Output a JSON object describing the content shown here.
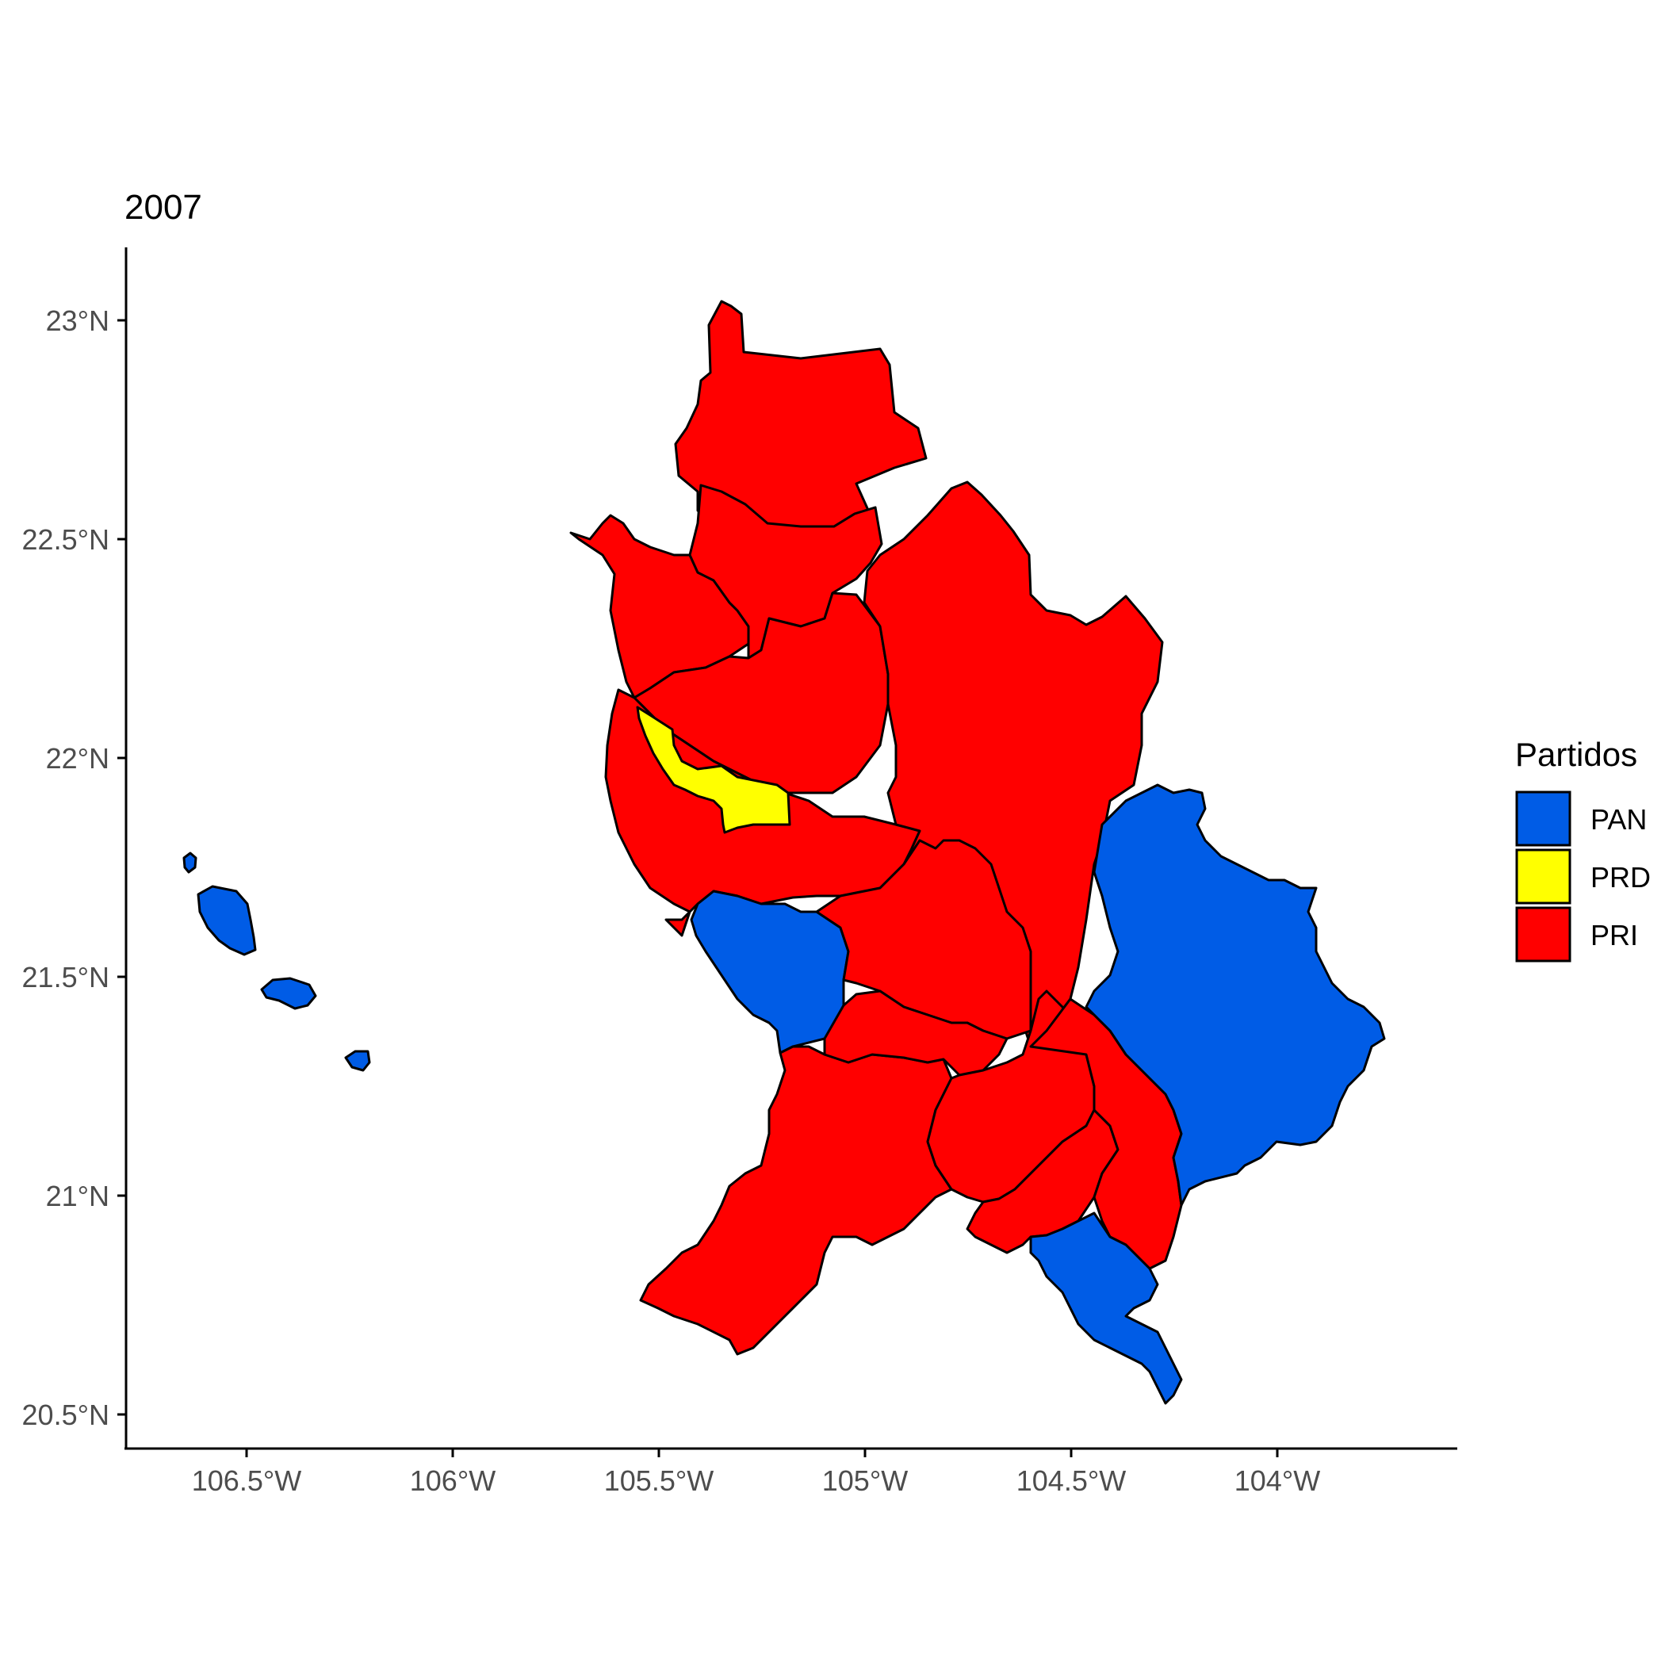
{
  "title": "2007",
  "colors": {
    "PAN": "#005ce6",
    "PRD": "#ffff00",
    "PRI": "#ff0000"
  },
  "axes": {
    "y_ticks": [
      "23°N",
      "22.5°N",
      "22°N",
      "21.5°N",
      "21°N",
      "20.5°N"
    ],
    "x_ticks": [
      "106.5°W",
      "106°W",
      "105.5°W",
      "105°W",
      "104.5°W",
      "104°W"
    ]
  },
  "legend": {
    "title": "Partidos",
    "entries": [
      {
        "label": "PAN",
        "party": "PAN"
      },
      {
        "label": "PRD",
        "party": "PRD"
      },
      {
        "label": "PRI",
        "party": "PRI"
      }
    ]
  },
  "regions": [
    {
      "name": "islas-marias-1",
      "party": "PAN"
    },
    {
      "name": "islas-marias-2",
      "party": "PAN"
    },
    {
      "name": "islas-marias-3",
      "party": "PAN"
    },
    {
      "name": "islas-marias-4",
      "party": "PAN"
    },
    {
      "name": "north-acaponeta",
      "party": "PRI"
    },
    {
      "name": "northwest-coast",
      "party": "PRI"
    },
    {
      "name": "northwest-interior",
      "party": "PRI"
    },
    {
      "name": "central-west",
      "party": "PRI"
    },
    {
      "name": "santiago-ixcuintla-coast",
      "party": "PRI"
    },
    {
      "name": "prd-municipality",
      "party": "PRD"
    },
    {
      "name": "east-central-large",
      "party": "PRI"
    },
    {
      "name": "west-coast-pan",
      "party": "PAN"
    },
    {
      "name": "central-south",
      "party": "PRI"
    },
    {
      "name": "southwest",
      "party": "PRI"
    },
    {
      "name": "south-central-1",
      "party": "PRI"
    },
    {
      "name": "south-central-2",
      "party": "PRI"
    },
    {
      "name": "south-central-3",
      "party": "PRI"
    },
    {
      "name": "south-east-small",
      "party": "PRI"
    },
    {
      "name": "east-large-pan",
      "party": "PAN"
    },
    {
      "name": "southeast-pan",
      "party": "PAN"
    }
  ]
}
